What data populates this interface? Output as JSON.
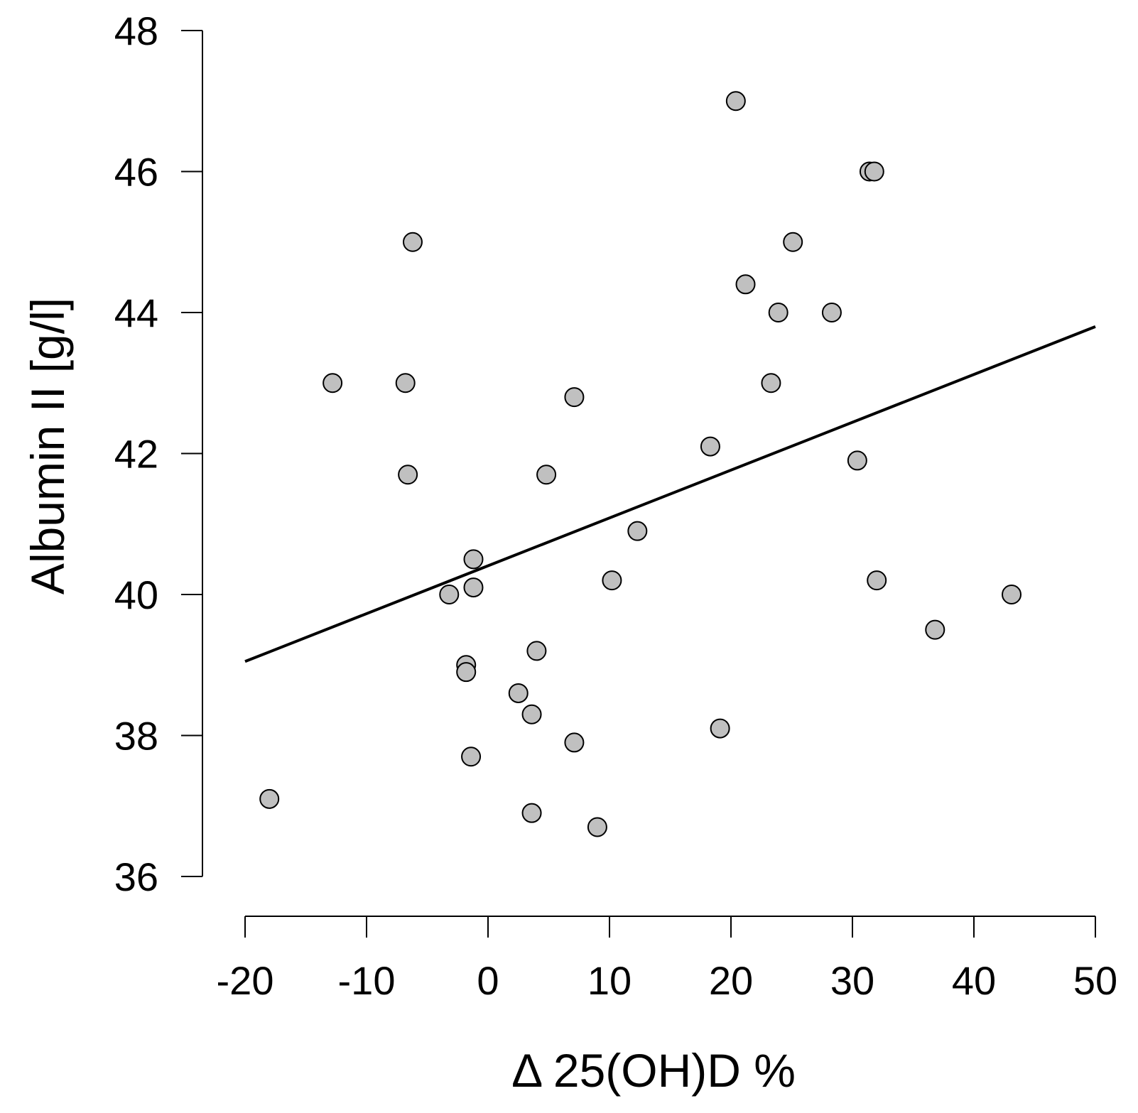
{
  "chart_data": {
    "type": "scatter",
    "title": "",
    "xlabel": "Δ 25(OH)D %",
    "ylabel": "Albumin II [g/l]",
    "xlim": [
      -20,
      50
    ],
    "ylim": [
      36,
      48
    ],
    "xticks": [
      -20,
      -10,
      0,
      10,
      20,
      30,
      40,
      50
    ],
    "yticks": [
      36,
      38,
      40,
      42,
      44,
      46,
      48
    ],
    "grid": false,
    "points": [
      {
        "x": -18.0,
        "y": 37.1
      },
      {
        "x": -12.8,
        "y": 43.0
      },
      {
        "x": -6.8,
        "y": 43.0
      },
      {
        "x": -6.6,
        "y": 41.7
      },
      {
        "x": -6.2,
        "y": 45.0
      },
      {
        "x": -3.2,
        "y": 40.0
      },
      {
        "x": -1.8,
        "y": 39.0
      },
      {
        "x": -1.8,
        "y": 38.9
      },
      {
        "x": -1.4,
        "y": 37.7
      },
      {
        "x": -1.2,
        "y": 40.5
      },
      {
        "x": -1.2,
        "y": 40.1
      },
      {
        "x": 2.5,
        "y": 38.6
      },
      {
        "x": 3.6,
        "y": 38.3
      },
      {
        "x": 3.6,
        "y": 36.9
      },
      {
        "x": 4.0,
        "y": 39.2
      },
      {
        "x": 4.8,
        "y": 41.7
      },
      {
        "x": 7.1,
        "y": 42.8
      },
      {
        "x": 7.1,
        "y": 37.9
      },
      {
        "x": 9.0,
        "y": 36.7
      },
      {
        "x": 10.2,
        "y": 40.2
      },
      {
        "x": 12.3,
        "y": 40.9
      },
      {
        "x": 18.3,
        "y": 42.1
      },
      {
        "x": 19.1,
        "y": 38.1
      },
      {
        "x": 20.4,
        "y": 47.0
      },
      {
        "x": 21.2,
        "y": 44.4
      },
      {
        "x": 23.3,
        "y": 43.0
      },
      {
        "x": 23.9,
        "y": 44.0
      },
      {
        "x": 25.1,
        "y": 45.0
      },
      {
        "x": 28.3,
        "y": 44.0
      },
      {
        "x": 30.4,
        "y": 41.9
      },
      {
        "x": 31.4,
        "y": 46.0
      },
      {
        "x": 31.8,
        "y": 46.0
      },
      {
        "x": 32.0,
        "y": 40.2
      },
      {
        "x": 36.8,
        "y": 39.5
      },
      {
        "x": 43.1,
        "y": 40.0
      }
    ],
    "trendline": {
      "x": [
        -20,
        50
      ],
      "y": [
        39.05,
        43.8
      ]
    }
  }
}
